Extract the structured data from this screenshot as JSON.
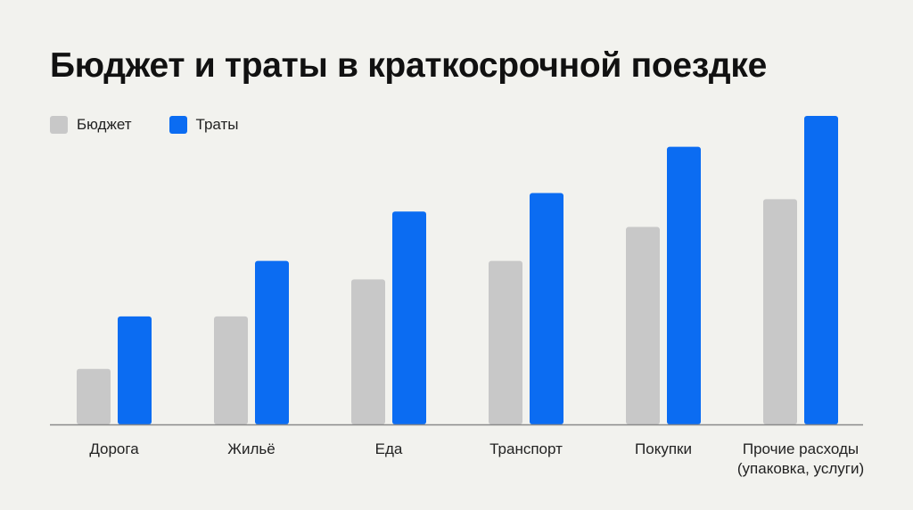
{
  "chart_data": {
    "type": "bar",
    "title": "Бюджет и траты в краткосрочной поездке",
    "categories": [
      [
        "Дорога"
      ],
      [
        "Жильё"
      ],
      [
        "Еда"
      ],
      [
        "Транспорт"
      ],
      [
        "Покупки"
      ],
      [
        "Прочие расходы",
        "(упаковка, услуги)"
      ]
    ],
    "series": [
      {
        "name": "Бюджет",
        "color": "#c8c8c8",
        "values": [
          18,
          35,
          47,
          53,
          64,
          73
        ]
      },
      {
        "name": "Траты",
        "color": "#0b6cf2",
        "values": [
          35,
          53,
          69,
          75,
          90,
          100
        ]
      }
    ],
    "ylim": [
      0,
      100
    ],
    "xlabel": "",
    "ylabel": "",
    "grid": false,
    "legend": "top-left"
  }
}
